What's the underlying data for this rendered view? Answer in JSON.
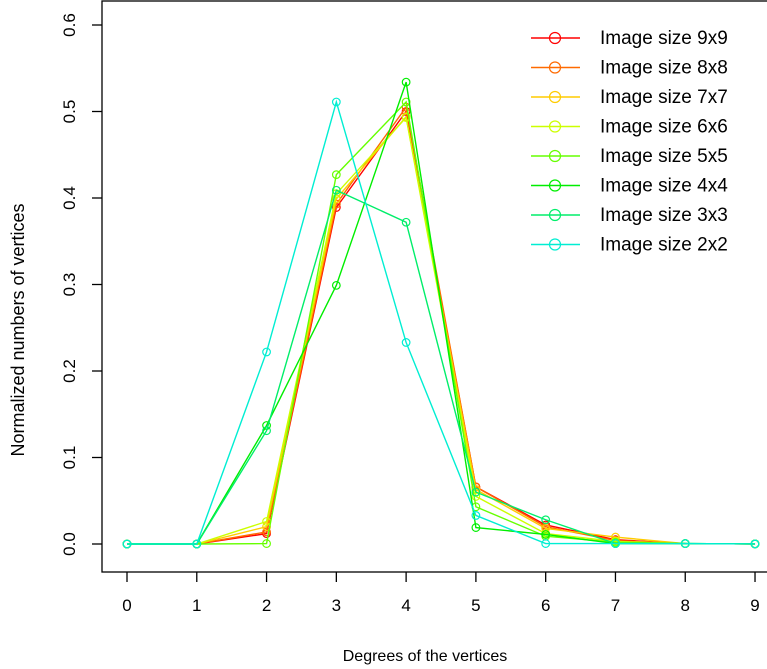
{
  "chart_data": {
    "type": "line",
    "title": "",
    "xlabel": "Degrees of the vertices",
    "ylabel": "Normalized numbers of vertices",
    "x": [
      0,
      1,
      2,
      3,
      4,
      5,
      6,
      7,
      8,
      9
    ],
    "xticks": [
      "0",
      "1",
      "2",
      "3",
      "4",
      "5",
      "6",
      "7",
      "8",
      "9"
    ],
    "yticks": [
      "0.0",
      "0.1",
      "0.2",
      "0.3",
      "0.4",
      "0.5",
      "0.6"
    ],
    "xlim": [
      0,
      9
    ],
    "ylim": [
      0,
      0.6
    ],
    "grid": false,
    "legend_position": "top-right",
    "marker": "open-circle",
    "series": [
      {
        "name": "Image size 9x9",
        "color": "#FF0000",
        "values": [
          0,
          0,
          0.012,
          0.389,
          0.5,
          0.066,
          0.022,
          0.005,
          0.0005,
          0.0001
        ]
      },
      {
        "name": "Image size 8x8",
        "color": "#FF6A00",
        "values": [
          0,
          0,
          0.014,
          0.393,
          0.505,
          0.066,
          0.02,
          0.004,
          0.0005,
          0.0001
        ]
      },
      {
        "name": "Image size 7x7",
        "color": "#FFCC00",
        "values": [
          0,
          0,
          0.02,
          0.399,
          0.494,
          0.063,
          0.018,
          0.008,
          0.0005,
          0.0001
        ]
      },
      {
        "name": "Image size 6x6",
        "color": "#CCFF00",
        "values": [
          0,
          0,
          0.026,
          0.405,
          0.493,
          0.055,
          0.012,
          0.003,
          0.0005,
          0.0001
        ]
      },
      {
        "name": "Image size 5x5",
        "color": "#66FF00",
        "values": [
          0,
          0,
          0.0005,
          0.427,
          0.511,
          0.043,
          0.009,
          0.002,
          0.0005,
          0.0001
        ]
      },
      {
        "name": "Image size 4x4",
        "color": "#00EE00",
        "values": [
          0,
          0,
          0.137,
          0.299,
          0.534,
          0.019,
          0.011,
          0.0005,
          0.0005,
          0.0001
        ]
      },
      {
        "name": "Image size 3x3",
        "color": "#00EE6A",
        "values": [
          0,
          0,
          0.131,
          0.409,
          0.372,
          0.06,
          0.028,
          0.0005,
          0.0005,
          0.0001
        ]
      },
      {
        "name": "Image size 2x2",
        "color": "#00EED2",
        "values": [
          0,
          0,
          0.222,
          0.511,
          0.233,
          0.033,
          0.0005,
          0.0005,
          0.0005,
          0.0001
        ]
      }
    ]
  }
}
